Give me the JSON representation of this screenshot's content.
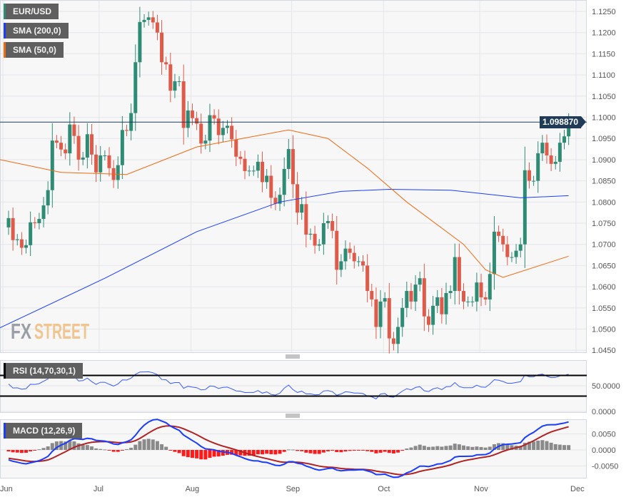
{
  "legends": {
    "pair": {
      "label": "EUR/USD",
      "color": "#2e8b74"
    },
    "sma200": {
      "label": "SMA (200,0)",
      "color": "#1a3cff"
    },
    "sma50": {
      "label": "SMA (50,0)",
      "color": "#f06a10"
    },
    "rsi": {
      "label": "RSI (14,70,30,1)",
      "color": "#000000"
    },
    "macd": {
      "label": "MACD (12,26,9)",
      "color": "#1a3cff"
    }
  },
  "current_price": "1.098870",
  "watermark": {
    "part1": "FX",
    "part2": "STREET"
  },
  "colors": {
    "up": "#2e8b74",
    "down": "#e05a4a",
    "macd_line": "#1a3cff",
    "signal_line": "#b22222",
    "hist_pos": "#8a8a8a",
    "hist_neg": "#ff1a1a",
    "rsi_line": "#3a5cff"
  },
  "chart_data": [
    {
      "type": "candlestick",
      "title": "EUR/USD",
      "yticks": [
        "1.1250",
        "1.1200",
        "1.1150",
        "1.1100",
        "1.1050",
        "1.1000",
        "1.0950",
        "1.0900",
        "1.0850",
        "1.0800",
        "1.0750",
        "1.0700",
        "1.0650",
        "1.0600",
        "1.0550",
        "1.0500",
        "1.0450"
      ],
      "ylim": [
        1.045,
        1.125
      ],
      "xticks": [
        {
          "label": "Jun",
          "date": "2023-06-01"
        },
        {
          "label": "Jul",
          "date": "2023-07-03"
        },
        {
          "label": "Aug",
          "date": "2023-08-01"
        },
        {
          "label": "Sep",
          "date": "2023-09-01"
        },
        {
          "label": "Oct",
          "date": "2023-10-02"
        },
        {
          "label": "Nov",
          "date": "2023-11-01"
        },
        {
          "label": "Dec",
          "date": "2023-12-01"
        }
      ],
      "first_open": 1.074,
      "dates": [
        "2023-06-01",
        "2023-06-02",
        "2023-06-05",
        "2023-06-06",
        "2023-06-07",
        "2023-06-08",
        "2023-06-09",
        "2023-06-12",
        "2023-06-13",
        "2023-06-14",
        "2023-06-15",
        "2023-06-16",
        "2023-06-19",
        "2023-06-20",
        "2023-06-21",
        "2023-06-22",
        "2023-06-23",
        "2023-06-26",
        "2023-06-27",
        "2023-06-28",
        "2023-06-29",
        "2023-06-30",
        "2023-07-03",
        "2023-07-04",
        "2023-07-05",
        "2023-07-06",
        "2023-07-07",
        "2023-07-10",
        "2023-07-11",
        "2023-07-12",
        "2023-07-13",
        "2023-07-14",
        "2023-07-17",
        "2023-07-18",
        "2023-07-19",
        "2023-07-20",
        "2023-07-21",
        "2023-07-24",
        "2023-07-25",
        "2023-07-26",
        "2023-07-27",
        "2023-07-28",
        "2023-07-31",
        "2023-08-01",
        "2023-08-02",
        "2023-08-03",
        "2023-08-04",
        "2023-08-07",
        "2023-08-08",
        "2023-08-09",
        "2023-08-10",
        "2023-08-11",
        "2023-08-14",
        "2023-08-15",
        "2023-08-16",
        "2023-08-17",
        "2023-08-18",
        "2023-08-21",
        "2023-08-22",
        "2023-08-23",
        "2023-08-24",
        "2023-08-25",
        "2023-08-28",
        "2023-08-29",
        "2023-08-30",
        "2023-08-31",
        "2023-09-01",
        "2023-09-04",
        "2023-09-05",
        "2023-09-06",
        "2023-09-07",
        "2023-09-08",
        "2023-09-11",
        "2023-09-12",
        "2023-09-13",
        "2023-09-14",
        "2023-09-15",
        "2023-09-18",
        "2023-09-19",
        "2023-09-20",
        "2023-09-21",
        "2023-09-22",
        "2023-09-25",
        "2023-09-26",
        "2023-09-27",
        "2023-09-28",
        "2023-09-29",
        "2023-10-02",
        "2023-10-03",
        "2023-10-04",
        "2023-10-05",
        "2023-10-06",
        "2023-10-09",
        "2023-10-10",
        "2023-10-11",
        "2023-10-12",
        "2023-10-13",
        "2023-10-16",
        "2023-10-17",
        "2023-10-18",
        "2023-10-19",
        "2023-10-20",
        "2023-10-23",
        "2023-10-24",
        "2023-10-25",
        "2023-10-26",
        "2023-10-27",
        "2023-10-30",
        "2023-10-31",
        "2023-11-01",
        "2023-11-02",
        "2023-11-03",
        "2023-11-06",
        "2023-11-07",
        "2023-11-08",
        "2023-11-09",
        "2023-11-10",
        "2023-11-13",
        "2023-11-14",
        "2023-11-15",
        "2023-11-16",
        "2023-11-17",
        "2023-11-20",
        "2023-11-21",
        "2023-11-22",
        "2023-11-23",
        "2023-11-24",
        "2023-11-27",
        "2023-11-28"
      ],
      "close": [
        1.0762,
        1.071,
        1.0712,
        1.0692,
        1.0698,
        1.0752,
        1.075,
        1.076,
        1.0792,
        1.0828,
        1.0945,
        1.094,
        1.0924,
        1.0915,
        1.0983,
        1.0956,
        1.09,
        1.0905,
        1.096,
        1.0912,
        1.087,
        1.091,
        1.091,
        1.088,
        1.0852,
        1.0887,
        1.097,
        1.0968,
        1.101,
        1.113,
        1.1225,
        1.123,
        1.1236,
        1.1224,
        1.12,
        1.113,
        1.1125,
        1.1063,
        1.1085,
        1.1085,
        1.0975,
        1.1016,
        1.0998,
        1.0985,
        1.0938,
        1.0945,
        1.1005,
        1.0997,
        1.0958,
        1.0975,
        1.098,
        1.0948,
        1.0907,
        1.0902,
        1.0873,
        1.0874,
        1.0874,
        1.0895,
        1.0847,
        1.0862,
        1.081,
        1.0796,
        1.0817,
        1.0878,
        1.0925,
        1.0842,
        1.0775,
        1.0795,
        1.0723,
        1.0725,
        1.0697,
        1.07,
        1.075,
        1.0755,
        1.0732,
        1.064,
        1.066,
        1.069,
        1.068,
        1.066,
        1.066,
        1.065,
        1.059,
        1.057,
        1.0505,
        1.0565,
        1.0573,
        1.0478,
        1.0465,
        1.0505,
        1.055,
        1.059,
        1.0565,
        1.0605,
        1.062,
        1.053,
        1.051,
        1.0555,
        1.0575,
        1.0535,
        1.0585,
        1.059,
        1.067,
        1.059,
        1.0565,
        1.0565,
        1.0565,
        1.061,
        1.0575,
        1.057,
        1.063,
        1.073,
        1.072,
        1.07,
        1.067,
        1.067,
        1.0685,
        1.07,
        1.0875,
        1.085,
        1.085,
        1.0915,
        1.094,
        1.091,
        1.089,
        1.0895,
        1.094,
        1.0955,
        1.0989
      ],
      "sma200": [
        [
          "2023-06-01",
          1.0503
        ],
        [
          "2023-07-03",
          1.062
        ],
        [
          "2023-08-01",
          1.073
        ],
        [
          "2023-08-28",
          1.08
        ],
        [
          "2023-09-15",
          1.0825
        ],
        [
          "2023-10-02",
          1.083
        ],
        [
          "2023-10-20",
          1.0828
        ],
        [
          "2023-11-13",
          1.081
        ],
        [
          "2023-11-28",
          1.0815
        ]
      ],
      "sma50": [
        [
          "2023-06-01",
          1.09
        ],
        [
          "2023-06-19",
          1.087
        ],
        [
          "2023-07-10",
          1.0865
        ],
        [
          "2023-08-01",
          1.093
        ],
        [
          "2023-08-18",
          1.0955
        ],
        [
          "2023-08-30",
          1.097
        ],
        [
          "2023-09-12",
          1.095
        ],
        [
          "2023-09-25",
          1.088
        ],
        [
          "2023-10-06",
          1.08
        ],
        [
          "2023-10-25",
          1.07
        ],
        [
          "2023-11-01",
          1.064
        ],
        [
          "2023-11-07",
          1.0622
        ],
        [
          "2023-11-28",
          1.0672
        ]
      ]
    },
    {
      "type": "line",
      "title": "RSI (14,70,30,1)",
      "levels": [
        70,
        30
      ],
      "yticks": [
        "50.0000",
        "0.0000"
      ],
      "ylim": [
        0,
        100
      ]
    },
    {
      "type": "line+bar",
      "title": "MACD (12,26,9)",
      "yticks": [
        "0.0050",
        "0.0000",
        "-0.0050"
      ],
      "ylim": [
        -0.0075,
        0.0095
      ]
    }
  ]
}
